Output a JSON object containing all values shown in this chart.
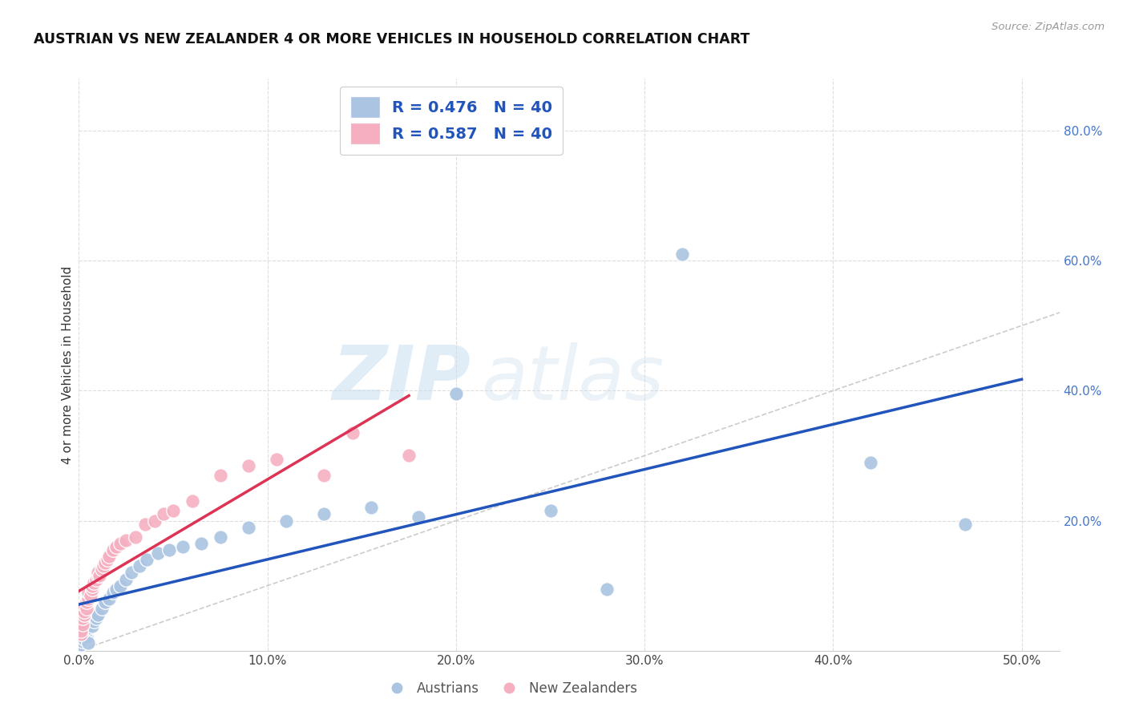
{
  "title": "AUSTRIAN VS NEW ZEALANDER 4 OR MORE VEHICLES IN HOUSEHOLD CORRELATION CHART",
  "source": "Source: ZipAtlas.com",
  "ylabel": "4 or more Vehicles in Household",
  "xlim": [
    0.0,
    0.52
  ],
  "ylim": [
    0.0,
    0.88
  ],
  "xticks": [
    0.0,
    0.1,
    0.2,
    0.3,
    0.4,
    0.5
  ],
  "xticklabels": [
    "0.0%",
    "10.0%",
    "20.0%",
    "30.0%",
    "40.0%",
    "50.0%"
  ],
  "yticks": [
    0.0,
    0.2,
    0.4,
    0.6,
    0.8
  ],
  "yticklabels": [
    "",
    "20.0%",
    "40.0%",
    "60.0%",
    "80.0%"
  ],
  "austrians_R": 0.476,
  "austrians_N": 40,
  "newzealanders_R": 0.587,
  "newzealanders_N": 40,
  "austrians_color": "#aac4e2",
  "newzealanders_color": "#f5afc0",
  "line_austrians_color": "#2255bb",
  "line_newzealanders_color": "#dd3355",
  "diagonal_color": "#cccccc",
  "watermark_zip": "ZIP",
  "watermark_atlas": "atlas",
  "legend_text_color": "#2255bb",
  "austrians_x": [
    0.001,
    0.002,
    0.002,
    0.003,
    0.003,
    0.004,
    0.004,
    0.005,
    0.005,
    0.006,
    0.007,
    0.008,
    0.009,
    0.01,
    0.012,
    0.014,
    0.016,
    0.018,
    0.02,
    0.022,
    0.025,
    0.028,
    0.032,
    0.036,
    0.042,
    0.048,
    0.055,
    0.065,
    0.075,
    0.09,
    0.11,
    0.13,
    0.155,
    0.18,
    0.2,
    0.25,
    0.28,
    0.32,
    0.42,
    0.47
  ],
  "austrians_y": [
    0.01,
    0.02,
    0.015,
    0.025,
    0.018,
    0.022,
    0.03,
    0.035,
    0.012,
    0.04,
    0.038,
    0.045,
    0.05,
    0.055,
    0.065,
    0.075,
    0.08,
    0.09,
    0.095,
    0.1,
    0.11,
    0.12,
    0.13,
    0.14,
    0.15,
    0.155,
    0.16,
    0.165,
    0.175,
    0.19,
    0.2,
    0.21,
    0.22,
    0.205,
    0.395,
    0.215,
    0.095,
    0.61,
    0.29,
    0.195
  ],
  "newzealanders_x": [
    0.001,
    0.001,
    0.002,
    0.002,
    0.003,
    0.003,
    0.003,
    0.004,
    0.004,
    0.005,
    0.005,
    0.006,
    0.007,
    0.007,
    0.008,
    0.009,
    0.01,
    0.01,
    0.011,
    0.012,
    0.013,
    0.014,
    0.015,
    0.016,
    0.018,
    0.02,
    0.022,
    0.025,
    0.03,
    0.035,
    0.04,
    0.045,
    0.05,
    0.06,
    0.075,
    0.09,
    0.105,
    0.13,
    0.145,
    0.175
  ],
  "newzealanders_y": [
    0.025,
    0.03,
    0.04,
    0.05,
    0.055,
    0.06,
    0.07,
    0.065,
    0.075,
    0.08,
    0.09,
    0.085,
    0.095,
    0.1,
    0.105,
    0.11,
    0.115,
    0.12,
    0.115,
    0.125,
    0.13,
    0.135,
    0.14,
    0.145,
    0.155,
    0.16,
    0.165,
    0.17,
    0.175,
    0.195,
    0.2,
    0.21,
    0.215,
    0.23,
    0.27,
    0.285,
    0.295,
    0.27,
    0.335,
    0.3
  ],
  "nz_line_xstart": 0.0,
  "nz_line_xend": 0.175
}
